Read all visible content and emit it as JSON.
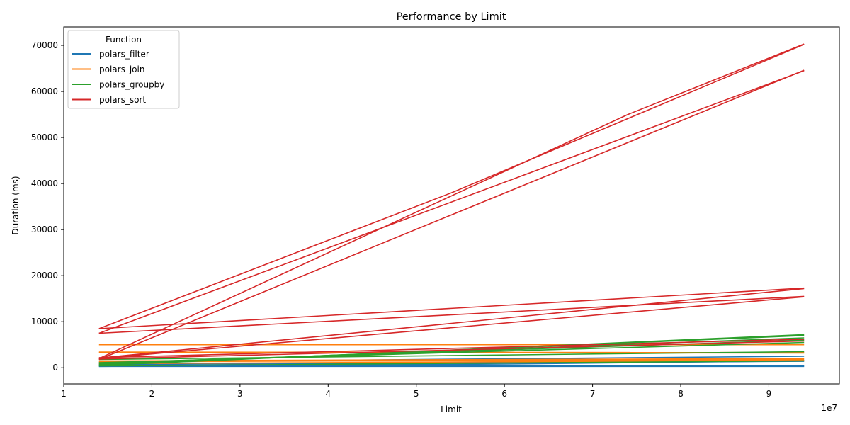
{
  "chart_data": {
    "type": "line",
    "title": "Performance by Limit",
    "xlabel": "Limit",
    "ylabel": "Duration (ms)",
    "x_offset_label": "1e7",
    "xlim": [
      10000000,
      98000000
    ],
    "ylim": [
      -3500,
      74000
    ],
    "x_ticks": [
      10000000,
      20000000,
      30000000,
      40000000,
      50000000,
      60000000,
      70000000,
      80000000,
      90000000
    ],
    "x_tick_labels": [
      "1",
      "2",
      "3",
      "4",
      "5",
      "6",
      "7",
      "8",
      "9"
    ],
    "y_ticks": [
      0,
      10000,
      20000,
      30000,
      40000,
      50000,
      60000,
      70000
    ],
    "y_tick_labels": [
      "0",
      "10000",
      "20000",
      "30000",
      "40000",
      "50000",
      "60000",
      "70000"
    ],
    "legend": {
      "title": "Function",
      "position": "top-left"
    },
    "series": [
      {
        "name": "polars_filter",
        "color": "#1f77b4",
        "lines": [
          [
            [
              14000000,
              300
            ],
            [
              94000000,
              300
            ]
          ],
          [
            [
              14000000,
              450
            ],
            [
              94000000,
              400
            ]
          ],
          [
            [
              14000000,
              700
            ],
            [
              94000000,
              1400
            ]
          ],
          [
            [
              14000000,
              800
            ],
            [
              94000000,
              1600
            ]
          ],
          [
            [
              14000000,
              1200
            ],
            [
              94000000,
              2500
            ]
          ],
          [
            [
              14000000,
              300
            ],
            [
              60000000,
              800
            ],
            [
              94000000,
              1500
            ]
          ]
        ]
      },
      {
        "name": "polars_join",
        "color": "#ff7f0e",
        "lines": [
          [
            [
              14000000,
              5000
            ],
            [
              94000000,
              5000
            ]
          ],
          [
            [
              14000000,
              3300
            ],
            [
              94000000,
              3200
            ]
          ],
          [
            [
              14000000,
              3400
            ],
            [
              94000000,
              3300
            ]
          ],
          [
            [
              14000000,
              1500
            ],
            [
              94000000,
              2000
            ]
          ],
          [
            [
              14000000,
              1300
            ],
            [
              94000000,
              1800
            ]
          ],
          [
            [
              14000000,
              900
            ],
            [
              94000000,
              1600
            ]
          ]
        ]
      },
      {
        "name": "polars_groupby",
        "color": "#2ca02c",
        "lines": [
          [
            [
              14000000,
              500
            ],
            [
              94000000,
              7200
            ]
          ],
          [
            [
              14000000,
              600
            ],
            [
              94000000,
              7000
            ]
          ],
          [
            [
              14000000,
              800
            ],
            [
              94000000,
              6500
            ]
          ],
          [
            [
              14000000,
              1000
            ],
            [
              94000000,
              6000
            ]
          ],
          [
            [
              14000000,
              1100
            ],
            [
              94000000,
              5500
            ]
          ],
          [
            [
              14000000,
              1800
            ],
            [
              94000000,
              3500
            ]
          ],
          [
            [
              14000000,
              400
            ],
            [
              94000000,
              1500
            ]
          ]
        ]
      },
      {
        "name": "polars_sort",
        "color": "#d62728",
        "lines": [
          [
            [
              14000000,
              8500
            ],
            [
              54000000,
              38000
            ],
            [
              94000000,
              70200
            ]
          ],
          [
            [
              14000000,
              2000
            ],
            [
              74000000,
              55000
            ],
            [
              94000000,
              70300
            ]
          ],
          [
            [
              14000000,
              7500
            ],
            [
              94000000,
              64500
            ]
          ],
          [
            [
              14000000,
              1800
            ],
            [
              94000000,
              64600
            ]
          ],
          [
            [
              14000000,
              8500
            ],
            [
              94000000,
              17300
            ]
          ],
          [
            [
              14000000,
              7500
            ],
            [
              94000000,
              15500
            ]
          ],
          [
            [
              14000000,
              2100
            ],
            [
              94000000,
              17200
            ]
          ],
          [
            [
              14000000,
              2000
            ],
            [
              94000000,
              15400
            ]
          ],
          [
            [
              14000000,
              2200
            ],
            [
              94000000,
              6200
            ]
          ],
          [
            [
              14000000,
              1900
            ],
            [
              94000000,
              5800
            ]
          ]
        ]
      }
    ]
  }
}
